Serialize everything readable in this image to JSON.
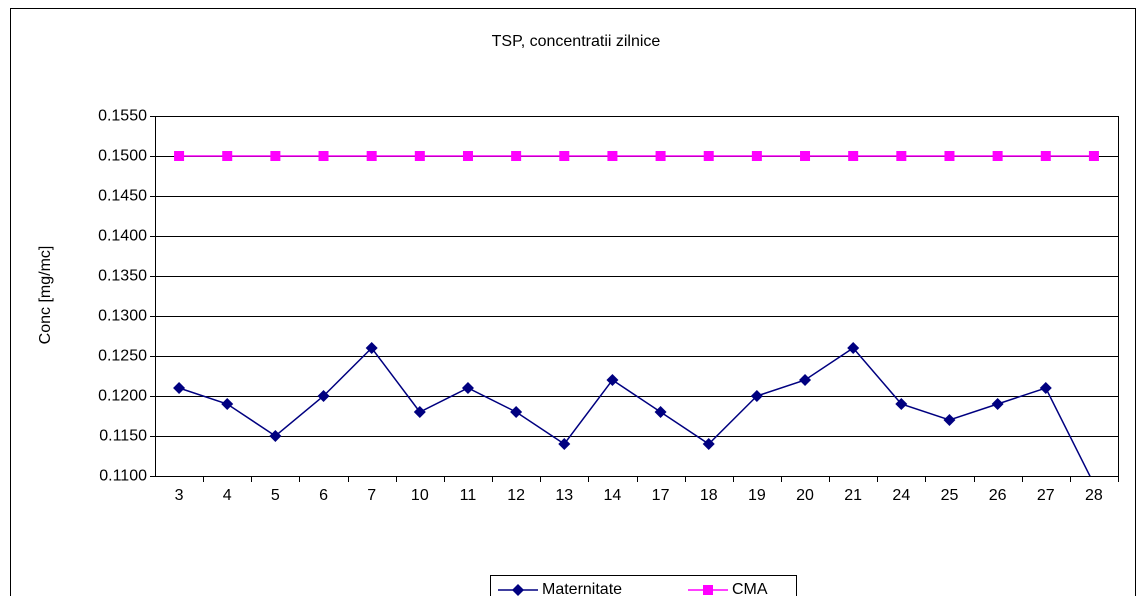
{
  "chart_data": {
    "type": "line",
    "title": "TSP, concentratii zilnice",
    "y_label": "Conc [mg/mc]",
    "categories": [
      "3",
      "4",
      "5",
      "6",
      "7",
      "10",
      "11",
      "12",
      "13",
      "14",
      "17",
      "18",
      "19",
      "20",
      "21",
      "24",
      "25",
      "26",
      "27",
      "28"
    ],
    "series": [
      {
        "name": "Maternitate",
        "color": "#000080",
        "marker": "diamond",
        "values": [
          0.121,
          0.119,
          0.115,
          0.12,
          0.126,
          0.118,
          0.121,
          0.118,
          0.114,
          0.122,
          0.118,
          0.114,
          0.12,
          0.122,
          0.126,
          0.119,
          0.117,
          0.119,
          0.121,
          0.109
        ]
      },
      {
        "name": "CMA",
        "color": "#ff00ff",
        "marker": "square",
        "values": [
          0.15,
          0.15,
          0.15,
          0.15,
          0.15,
          0.15,
          0.15,
          0.15,
          0.15,
          0.15,
          0.15,
          0.15,
          0.15,
          0.15,
          0.15,
          0.15,
          0.15,
          0.15,
          0.15,
          0.15
        ]
      }
    ],
    "ylim": [
      0.11,
      0.155
    ],
    "yticks": [
      {
        "value": 0.11,
        "label": "0.1100"
      },
      {
        "value": 0.115,
        "label": "0.1150"
      },
      {
        "value": 0.12,
        "label": "0.1200"
      },
      {
        "value": 0.125,
        "label": "0.1250"
      },
      {
        "value": 0.13,
        "label": "0.1300"
      },
      {
        "value": 0.135,
        "label": "0.1350"
      },
      {
        "value": 0.14,
        "label": "0.1400"
      },
      {
        "value": 0.145,
        "label": "0.1450"
      },
      {
        "value": 0.15,
        "label": "0.1500"
      },
      {
        "value": 0.155,
        "label": "0.1550"
      }
    ],
    "grid": true,
    "legend": "bottom"
  }
}
